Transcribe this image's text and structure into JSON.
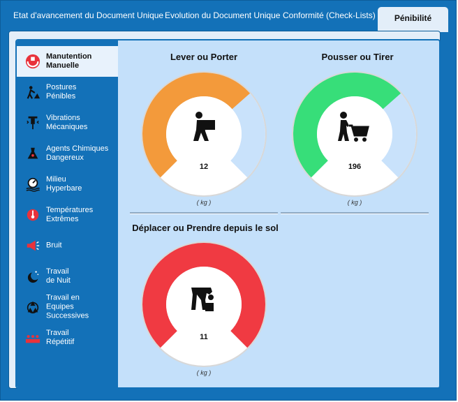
{
  "tabs": [
    {
      "label": "Etat d'avancement du Document Unique"
    },
    {
      "label": "Evolution du Document Unique"
    },
    {
      "label": "Conformité (Check-Lists)"
    },
    {
      "label": "Pénibilité"
    }
  ],
  "sidebar": {
    "items": [
      {
        "label": "Manutention\nManuelle",
        "icon": "hands-box-icon",
        "active": true
      },
      {
        "label": "Postures\nPénibles",
        "icon": "worker-posture-icon"
      },
      {
        "label": "Vibrations\nMécaniques",
        "icon": "jackhammer-icon"
      },
      {
        "label": "Agents Chimiques\nDangereux",
        "icon": "chemical-flask-icon"
      },
      {
        "label": "Milieu\nHyperbare",
        "icon": "pressure-gauge-icon"
      },
      {
        "label": "Températures\nExtrêmes",
        "icon": "thermometer-icon"
      },
      {
        "label": "Bruit",
        "icon": "megaphone-icon"
      },
      {
        "label": "Travail\nde Nuit",
        "icon": "moon-stars-icon"
      },
      {
        "label": "Travail en\nEquipes Successives",
        "icon": "recycle-icon"
      },
      {
        "label": "Travail\nRépétitif",
        "icon": "repetitive-workers-icon"
      }
    ]
  },
  "gauges": [
    {
      "title": "Lever ou Porter",
      "value": "12",
      "unit": "( kg )",
      "fill_fraction": 0.68,
      "color": "#f39a3b",
      "icon": "person-carrying-box-icon"
    },
    {
      "title": "Pousser ou Tirer",
      "value": "196",
      "unit": "( kg )",
      "fill_fraction": 0.68,
      "color": "#37de79",
      "icon": "person-pushing-cart-icon"
    },
    {
      "title": "Déplacer ou Prendre depuis le sol",
      "value": "11",
      "unit": "( kg )",
      "fill_fraction": 1.0,
      "color": "#f03a42",
      "icon": "person-lifting-from-floor-icon"
    }
  ],
  "colors": {
    "frame": "#1371b8",
    "panel_bg": "#c4e0fa",
    "gauge_track": "#c9e2fb"
  }
}
